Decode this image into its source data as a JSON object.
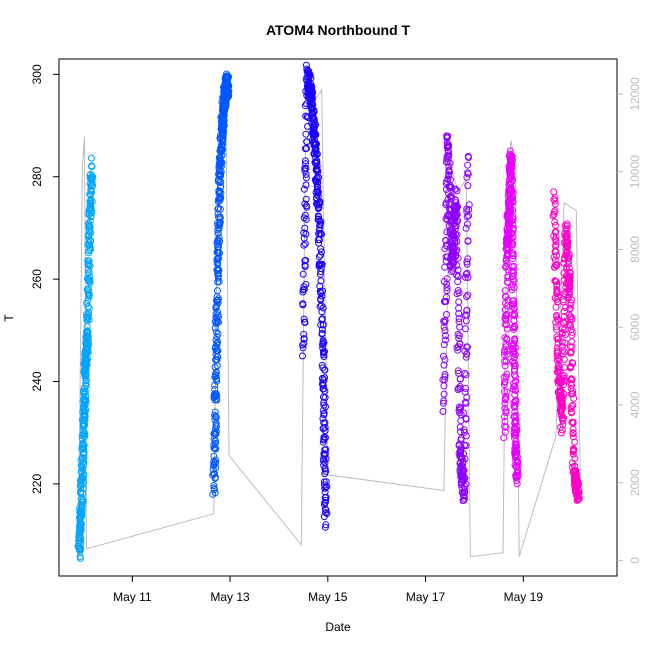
{
  "chart_data": {
    "type": "scatter",
    "title": "ATOM4 Northbound T",
    "xlabel": "Date",
    "ylabel": "T",
    "x_ticks": [
      {
        "date": "2024-05-11",
        "label": "May 11"
      },
      {
        "date": "2024-05-13",
        "label": "May 13"
      },
      {
        "date": "2024-05-15",
        "label": "May 15"
      },
      {
        "date": "2024-05-17",
        "label": "May 17"
      },
      {
        "date": "2024-05-19",
        "label": "May 19"
      }
    ],
    "xlim": [
      "2024-05-09T12:00",
      "2024-05-20T22:00"
    ],
    "ylim": [
      202,
      303
    ],
    "y_ticks": [
      220,
      240,
      260,
      280,
      300
    ],
    "secondary_axis": {
      "side": "right",
      "color": "#bdbdbd",
      "ylim": [
        -400,
        12900
      ],
      "ticks": [
        0,
        2000,
        4000,
        6000,
        8000,
        10000,
        12000
      ]
    },
    "grid": false,
    "legend": "none",
    "marker": "open-circle",
    "series": [
      {
        "color": "#00A5FF",
        "start": "2024-05-09T22:00",
        "end": "2024-05-10T04:00",
        "points": [
          [
            "2024-05-09T22:00",
            207
          ],
          [
            "2024-05-09T23:00",
            216
          ],
          [
            "2024-05-10T00:00",
            230
          ],
          [
            "2024-05-10T01:00",
            243
          ],
          [
            "2024-05-10T02:00",
            249
          ],
          [
            "2024-05-10T03:00",
            268
          ],
          [
            "2024-05-10T04:00",
            282
          ]
        ]
      },
      {
        "color": "#0057FF",
        "start": "2024-05-12T16:00",
        "end": "2024-05-12T23:00",
        "points": [
          [
            "2024-05-12T16:00",
            219
          ],
          [
            "2024-05-12T17:00",
            240
          ],
          [
            "2024-05-12T18:00",
            262
          ],
          [
            "2024-05-12T19:00",
            280
          ],
          [
            "2024-05-12T20:00",
            289
          ],
          [
            "2024-05-12T21:00",
            295
          ],
          [
            "2024-05-12T22:00",
            297
          ],
          [
            "2024-05-12T23:00",
            298
          ]
        ]
      },
      {
        "color": "#1A00FF",
        "start": "2024-05-14T12:00",
        "end": "2024-05-14T23:00",
        "points": [
          [
            "2024-05-14T12:00",
            245
          ],
          [
            "2024-05-14T14:00",
            300
          ],
          [
            "2024-05-14T16:00",
            295
          ],
          [
            "2024-05-14T18:00",
            285
          ],
          [
            "2024-05-14T20:00",
            270
          ],
          [
            "2024-05-14T22:00",
            240
          ],
          [
            "2024-05-14T23:00",
            212
          ]
        ]
      },
      {
        "color": "#8C00FF",
        "start": "2024-05-17T09:00",
        "end": "2024-05-17T21:00",
        "points": [
          [
            "2024-05-17T09:00",
            236
          ],
          [
            "2024-05-17T11:00",
            288
          ],
          [
            "2024-05-17T13:00",
            262
          ],
          [
            "2024-05-17T15:00",
            276
          ],
          [
            "2024-05-17T17:00",
            226
          ],
          [
            "2024-05-17T19:00",
            218
          ],
          [
            "2024-05-17T21:00",
            284
          ]
        ]
      },
      {
        "color": "#E600FF",
        "start": "2024-05-18T15:00",
        "end": "2024-05-18T21:00",
        "points": [
          [
            "2024-05-18T15:00",
            230
          ],
          [
            "2024-05-18T16:00",
            265
          ],
          [
            "2024-05-18T17:00",
            273
          ],
          [
            "2024-05-18T18:00",
            285
          ],
          [
            "2024-05-18T19:00",
            255
          ],
          [
            "2024-05-18T20:00",
            232
          ],
          [
            "2024-05-18T21:00",
            220
          ]
        ]
      },
      {
        "color": "#FF00C8",
        "start": "2024-05-19T15:00",
        "end": "2024-05-20T03:00",
        "points": [
          [
            "2024-05-19T15:00",
            276
          ],
          [
            "2024-05-19T17:00",
            245
          ],
          [
            "2024-05-19T19:00",
            232
          ],
          [
            "2024-05-19T21:00",
            270
          ],
          [
            "2024-05-19T23:00",
            255
          ],
          [
            "2024-05-20T01:00",
            222
          ],
          [
            "2024-05-20T03:00",
            218
          ]
        ]
      }
    ],
    "secondary_line": {
      "color": "#bdbdbd",
      "points": [
        [
          "2024-05-09T21:30",
          0
        ],
        [
          "2024-05-09T22:30",
          5200
        ],
        [
          "2024-05-09T23:30",
          10100
        ],
        [
          "2024-05-10T00:30",
          10900
        ],
        [
          "2024-05-10T01:30",
          300
        ],
        [
          "2024-05-12T16:00",
          1200
        ],
        [
          "2024-05-12T18:00",
          9800
        ],
        [
          "2024-05-12T20:00",
          11300
        ],
        [
          "2024-05-12T22:00",
          11600
        ],
        [
          "2024-05-12T23:30",
          2700
        ],
        [
          "2024-05-14T11:00",
          400
        ],
        [
          "2024-05-14T13:00",
          10500
        ],
        [
          "2024-05-14T17:00",
          11800
        ],
        [
          "2024-05-14T21:00",
          12100
        ],
        [
          "2024-05-15T00:00",
          2200
        ],
        [
          "2024-05-17T09:00",
          1800
        ],
        [
          "2024-05-17T12:00",
          10200
        ],
        [
          "2024-05-17T16:00",
          9500
        ],
        [
          "2024-05-17T20:00",
          9800
        ],
        [
          "2024-05-17T22:00",
          100
        ],
        [
          "2024-05-18T14:00",
          200
        ],
        [
          "2024-05-18T16:00",
          9800
        ],
        [
          "2024-05-18T18:00",
          10800
        ],
        [
          "2024-05-18T20:00",
          10100
        ],
        [
          "2024-05-18T22:00",
          100
        ],
        [
          "2024-05-19T16:00",
          3200
        ],
        [
          "2024-05-19T20:00",
          9200
        ],
        [
          "2024-05-20T02:00",
          9000
        ],
        [
          "2024-05-20T04:00",
          2000
        ]
      ]
    }
  }
}
